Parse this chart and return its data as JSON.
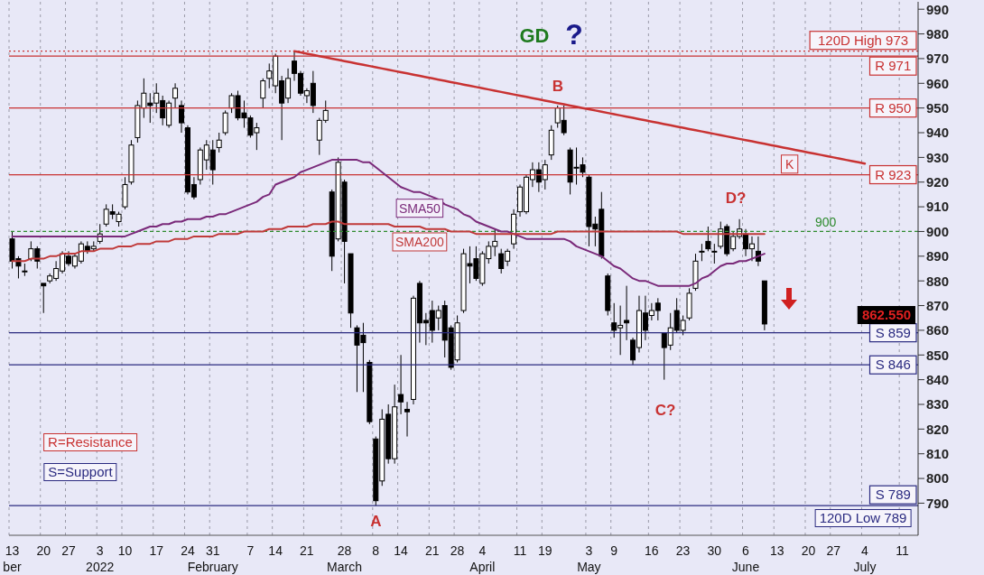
{
  "chart_data": {
    "type": "candlestick",
    "categories": [
      "13\nber",
      null,
      null,
      null,
      null,
      "20",
      null,
      null,
      null,
      "27",
      null,
      null,
      null,
      null,
      "3\n2022",
      null,
      null,
      null,
      "10",
      null,
      null,
      null,
      null,
      "17",
      null,
      null,
      null,
      null,
      "24",
      null,
      null,
      null,
      "31\nFebruary",
      null,
      null,
      null,
      null,
      null,
      "7",
      null,
      null,
      null,
      "14",
      null,
      null,
      null,
      null,
      "21",
      null,
      null,
      null,
      null,
      null,
      "28\nMarch",
      null,
      null,
      null,
      null,
      "8",
      null,
      null,
      null,
      "14",
      null,
      null,
      null,
      null,
      "21",
      null,
      null,
      null,
      "28",
      null,
      null,
      null,
      "4\nApril",
      null,
      null,
      null,
      null,
      null,
      "11",
      null,
      null,
      null,
      "19",
      null,
      null,
      null,
      null,
      null,
      null,
      "3\nMay",
      null,
      null,
      null,
      "9",
      null,
      null,
      null,
      null,
      null,
      "16",
      null,
      null,
      null,
      null,
      "23",
      null,
      null,
      null,
      null,
      "30",
      null,
      null,
      null,
      null,
      "6\nJune",
      null,
      null,
      null,
      null,
      "13",
      null,
      null,
      null,
      null,
      "20",
      null,
      null,
      null,
      "27",
      null,
      null,
      null,
      null,
      "4\nJuly",
      null,
      null,
      null,
      null,
      null,
      "11",
      null,
      null
    ],
    "ohlc": [
      [
        897,
        900,
        885,
        888
      ],
      [
        889,
        890,
        881,
        886
      ],
      [
        884,
        887,
        882,
        884
      ],
      [
        889,
        896,
        888,
        893
      ],
      [
        893,
        894,
        885,
        888
      ],
      [
        879,
        879,
        867,
        878
      ],
      [
        880,
        883,
        879,
        882
      ],
      [
        881,
        888,
        880,
        885
      ],
      [
        884,
        892,
        883,
        891
      ],
      [
        890,
        892,
        886,
        887
      ],
      [
        886,
        891,
        885,
        890
      ],
      [
        888,
        896,
        887,
        895
      ],
      [
        894,
        896,
        891,
        892
      ],
      [
        893,
        896,
        892,
        894
      ],
      [
        896,
        903,
        895,
        899
      ],
      [
        903,
        911,
        902,
        909
      ],
      [
        908,
        911,
        905,
        907
      ],
      [
        904,
        908,
        902,
        907
      ],
      [
        910,
        922,
        909,
        919
      ],
      [
        920,
        937,
        919,
        935
      ],
      [
        938,
        953,
        936,
        951
      ],
      [
        950,
        962,
        946,
        956
      ],
      [
        952,
        956,
        944,
        951
      ],
      [
        952,
        960,
        948,
        956
      ],
      [
        953,
        955,
        943,
        946
      ],
      [
        943,
        953,
        942,
        952
      ],
      [
        954,
        960,
        950,
        958
      ],
      [
        951,
        953,
        940,
        944
      ],
      [
        942,
        943,
        915,
        916
      ],
      [
        919,
        922,
        913,
        914
      ],
      [
        921,
        934,
        919,
        933
      ],
      [
        929,
        937,
        925,
        935
      ],
      [
        933,
        937,
        919,
        925
      ],
      [
        934,
        940,
        932,
        937
      ],
      [
        940,
        949,
        939,
        948
      ],
      [
        950,
        956,
        948,
        955
      ],
      [
        955,
        957,
        945,
        946
      ],
      [
        948,
        953,
        942,
        946
      ],
      [
        946,
        947,
        938,
        939
      ],
      [
        940,
        944,
        933,
        942
      ],
      [
        954,
        962,
        950,
        961
      ],
      [
        962,
        968,
        958,
        965
      ],
      [
        959,
        972,
        956,
        971
      ],
      [
        961,
        963,
        937,
        952
      ],
      [
        954,
        966,
        952,
        962
      ],
      [
        969,
        973,
        961,
        964
      ],
      [
        964,
        965,
        955,
        956
      ],
      [
        955,
        958,
        952,
        957
      ],
      [
        960,
        965,
        948,
        951
      ],
      [
        937,
        946,
        931,
        945
      ],
      [
        945,
        953,
        944,
        949
      ],
      [
        916,
        917,
        884,
        890
      ],
      [
        897,
        930,
        896,
        928
      ],
      [
        920,
        921,
        879,
        896
      ],
      [
        891,
        891,
        861,
        867
      ],
      [
        861,
        862,
        835,
        854
      ],
      [
        858,
        863,
        835,
        855
      ],
      [
        847,
        848,
        822,
        823
      ],
      [
        816,
        817,
        789,
        791
      ],
      [
        799,
        828,
        797,
        824
      ],
      [
        826,
        830,
        806,
        808
      ],
      [
        808,
        838,
        806,
        829
      ],
      [
        834,
        850,
        826,
        831
      ],
      [
        828,
        831,
        817,
        827
      ],
      [
        832,
        874,
        830,
        873
      ],
      [
        879,
        880,
        855,
        863
      ],
      [
        864,
        867,
        854,
        863
      ],
      [
        868,
        872,
        855,
        860
      ],
      [
        865,
        870,
        860,
        868
      ],
      [
        870,
        872,
        849,
        856
      ],
      [
        861,
        862,
        844,
        845
      ],
      [
        848,
        866,
        847,
        863
      ],
      [
        868,
        893,
        867,
        891
      ],
      [
        887,
        894,
        879,
        886
      ],
      [
        889,
        894,
        880,
        881
      ],
      [
        879,
        892,
        878,
        891
      ],
      [
        889,
        896,
        887,
        894
      ],
      [
        894,
        901,
        890,
        896
      ],
      [
        891,
        893,
        883,
        885
      ],
      [
        888,
        893,
        886,
        892
      ],
      [
        895,
        909,
        893,
        907
      ],
      [
        908,
        919,
        906,
        918
      ],
      [
        908,
        923,
        907,
        922
      ],
      [
        921,
        928,
        918,
        925
      ],
      [
        925,
        928,
        916,
        920
      ],
      [
        921,
        929,
        917,
        927
      ],
      [
        931,
        943,
        929,
        941
      ],
      [
        944,
        951,
        942,
        950
      ],
      [
        945,
        951,
        939,
        940
      ],
      [
        933,
        934,
        915,
        920
      ],
      [
        926,
        934,
        919,
        926
      ],
      [
        927,
        930,
        922,
        924
      ],
      [
        922,
        923,
        894,
        902
      ],
      [
        903,
        906,
        894,
        901
      ],
      [
        909,
        916,
        889,
        890
      ],
      [
        882,
        883,
        866,
        868
      ],
      [
        863,
        871,
        857,
        860
      ],
      [
        861,
        870,
        850,
        862
      ],
      [
        864,
        878,
        856,
        863
      ],
      [
        856,
        857,
        846,
        848
      ],
      [
        853,
        874,
        851,
        868
      ],
      [
        867,
        874,
        856,
        860
      ],
      [
        866,
        871,
        864,
        868
      ],
      [
        871,
        873,
        864,
        868
      ],
      [
        859,
        859,
        840,
        853
      ],
      [
        854,
        867,
        852,
        861
      ],
      [
        868,
        873,
        859,
        860
      ],
      [
        860,
        866,
        858,
        864
      ],
      [
        865,
        877,
        864,
        875
      ],
      [
        877,
        891,
        876,
        888
      ],
      [
        892,
        895,
        888,
        892
      ],
      [
        896,
        902,
        892,
        893
      ],
      [
        892,
        895,
        887,
        892
      ],
      [
        894,
        904,
        893,
        901
      ],
      [
        902,
        903,
        890,
        891
      ],
      [
        893,
        900,
        892,
        898
      ],
      [
        898,
        905,
        897,
        901
      ],
      [
        899,
        901,
        890,
        893
      ],
      [
        893,
        898,
        888,
        895
      ],
      [
        892,
        898,
        886,
        888
      ],
      [
        880,
        880,
        860,
        862.55
      ],
      null,
      null,
      null,
      null,
      null,
      null,
      null,
      null,
      null,
      null,
      null,
      null,
      null,
      null,
      null,
      null,
      null,
      null,
      null,
      null,
      null,
      null,
      null,
      null
    ],
    "series": [
      {
        "type": "line",
        "name": "SMA50",
        "color": "#7a2a7a",
        "values": [
          898,
          898,
          898,
          898,
          898,
          898,
          898,
          898,
          898,
          898,
          898,
          898,
          898,
          898,
          898,
          898,
          898,
          898,
          898,
          899,
          900,
          901,
          902,
          902,
          903,
          903,
          904,
          904,
          905,
          905,
          905,
          906,
          906,
          907,
          907,
          908,
          909,
          910,
          911,
          912,
          914,
          915,
          919,
          920,
          921,
          922,
          924,
          925,
          926,
          927,
          928,
          929,
          929,
          929,
          929,
          929,
          928,
          928,
          926,
          924,
          922,
          920,
          918,
          917,
          916,
          916,
          915,
          914,
          913,
          911,
          910,
          909,
          907,
          906,
          904,
          903,
          902,
          901,
          900,
          900,
          899,
          898,
          897,
          897,
          897,
          897,
          897,
          897,
          897,
          896,
          894,
          893,
          892,
          891,
          890,
          888,
          886,
          885,
          883,
          881,
          880,
          880,
          879,
          878,
          878,
          878,
          878,
          878,
          878,
          879,
          881,
          882,
          884,
          886,
          887,
          887,
          888,
          888,
          889,
          890,
          891,
          null,
          null,
          null,
          null,
          null,
          null,
          null,
          null,
          null,
          null,
          null,
          null,
          null,
          null,
          null,
          null,
          null,
          null,
          null,
          null,
          null,
          null,
          null,
          null
        ]
      },
      {
        "type": "line",
        "name": "SMA200",
        "color": "#c03a3a",
        "values": [
          888,
          888,
          888,
          889,
          889,
          889,
          890,
          890,
          891,
          891,
          891,
          892,
          892,
          892,
          893,
          893,
          893,
          894,
          894,
          894,
          895,
          895,
          895,
          896,
          896,
          896,
          897,
          897,
          897,
          898,
          898,
          898,
          898,
          899,
          899,
          899,
          899,
          900,
          900,
          900,
          900,
          901,
          901,
          901,
          902,
          902,
          902,
          902,
          903,
          903,
          903,
          904,
          904,
          903,
          903,
          903,
          903,
          903,
          903,
          903,
          903,
          902,
          902,
          902,
          902,
          902,
          901,
          901,
          901,
          901,
          900,
          900,
          900,
          900,
          899,
          899,
          899,
          899,
          899,
          899,
          899,
          899,
          899,
          899,
          899,
          899,
          899,
          900,
          900,
          900,
          900,
          900,
          900,
          900,
          900,
          900,
          900,
          900,
          900,
          900,
          900,
          900,
          900,
          900,
          900,
          900,
          900,
          899,
          899,
          899,
          899,
          899,
          899,
          899,
          899,
          899,
          899,
          899,
          899,
          899,
          899,
          null,
          null,
          null,
          null,
          null,
          null,
          null,
          null,
          null,
          null,
          null,
          null,
          null,
          null,
          null,
          null,
          null,
          null,
          null,
          null,
          null,
          null,
          null,
          null
        ]
      },
      {
        "type": "line",
        "name": "K",
        "color": "#c83232",
        "values": [
          null,
          null,
          null,
          null,
          null,
          null,
          null,
          null,
          null,
          null,
          null,
          null,
          null,
          null,
          null,
          null,
          null,
          null,
          null,
          null,
          null,
          null,
          null,
          null,
          null,
          null,
          null,
          null,
          null,
          null,
          null,
          null,
          null,
          null,
          null,
          null,
          null,
          null,
          null,
          null,
          null,
          null,
          null,
          null,
          null,
          973,
          972.5,
          972,
          971.5,
          971,
          970.5,
          970,
          969.5,
          969,
          968.5,
          968,
          967.5,
          967,
          966.5,
          966,
          965.5,
          965,
          964.5,
          964,
          963.5,
          963,
          962.5,
          962,
          961.5,
          961,
          960.5,
          960,
          959.5,
          959,
          958.5,
          958,
          957.5,
          957,
          956.5,
          956,
          955.5,
          955,
          954.5,
          954,
          953.5,
          953,
          952.5,
          952,
          951.5,
          951,
          950.5,
          950,
          949.5,
          949,
          948.5,
          948,
          947.5,
          947,
          946.5,
          946,
          945.5,
          945,
          944.5,
          944,
          943.5,
          943,
          942.5,
          942,
          941.5,
          941,
          940.5,
          940,
          939.5,
          939,
          938.5,
          938,
          937.5,
          937,
          936.5,
          936,
          935.5,
          935,
          934.5,
          934,
          933.5,
          933,
          932.5,
          932,
          931.5,
          931,
          930.5,
          930,
          929.5,
          929,
          928.5,
          928,
          927.5,
          null,
          null,
          null,
          null,
          null,
          null,
          null,
          null
        ]
      }
    ],
    "ylim": [
      777,
      993
    ],
    "yticks": [
      790,
      800,
      810,
      820,
      830,
      840,
      850,
      860,
      870,
      880,
      890,
      900,
      910,
      920,
      930,
      940,
      950,
      960,
      970,
      980,
      990
    ],
    "grid": "x",
    "ref_lines": [
      {
        "axis": "y",
        "value": 973,
        "label": "120D High 973",
        "color": "#c83232",
        "line_style": "dotted"
      },
      {
        "axis": "y",
        "value": 971,
        "label": "R 971",
        "color": "#c83232",
        "line_style": "solid"
      },
      {
        "axis": "y",
        "value": 950,
        "label": "R 950",
        "color": "#c83232",
        "line_style": "solid"
      },
      {
        "axis": "y",
        "value": 923,
        "label": "R 923",
        "color": "#c83232",
        "line_style": "solid"
      },
      {
        "axis": "y",
        "value": 900,
        "label": "900",
        "color": "#2e8b2e",
        "line_style": "dashed"
      },
      {
        "axis": "y",
        "value": 859,
        "label": "S 859",
        "color": "#2a2a80",
        "line_style": "solid"
      },
      {
        "axis": "y",
        "value": 846,
        "label": "S 846",
        "color": "#2a2a80",
        "line_style": "solid"
      },
      {
        "axis": "y",
        "value": 789,
        "label": "S 789",
        "color": "#2a2a80",
        "line_style": "solid"
      }
    ],
    "annotations": [
      "GD",
      "?",
      {
        "text": "A",
        "x": "8",
        "y": 789
      },
      {
        "text": "B",
        "y": 952
      },
      {
        "text": "C?",
        "y": 840
      },
      {
        "text": "D?",
        "y": 905
      },
      "R=Resistance",
      "S=Support",
      "862.550",
      {
        "text": "120D Low 789",
        "y": 789
      }
    ]
  }
}
